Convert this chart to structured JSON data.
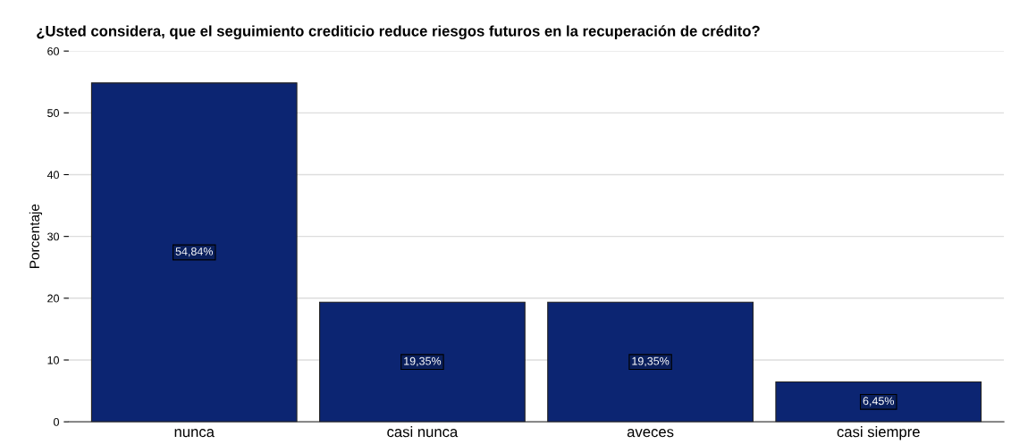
{
  "chart_data": {
    "type": "bar",
    "title": "¿Usted considera, que el seguimiento crediticio reduce riesgos futuros en la recuperación de crédito?",
    "ylabel": "Porcentaje",
    "categories": [
      "nunca",
      "casi nunca",
      "aveces",
      "casi siempre"
    ],
    "values": [
      54.84,
      19.35,
      19.35,
      6.45
    ],
    "value_labels": [
      "54,84%",
      "19,35%",
      "19,35%",
      "6,45%"
    ],
    "color": "#0c2572",
    "ylim": [
      0,
      60
    ],
    "yticks": [
      0,
      10,
      20,
      30,
      40,
      50,
      60
    ],
    "grid": "y"
  }
}
